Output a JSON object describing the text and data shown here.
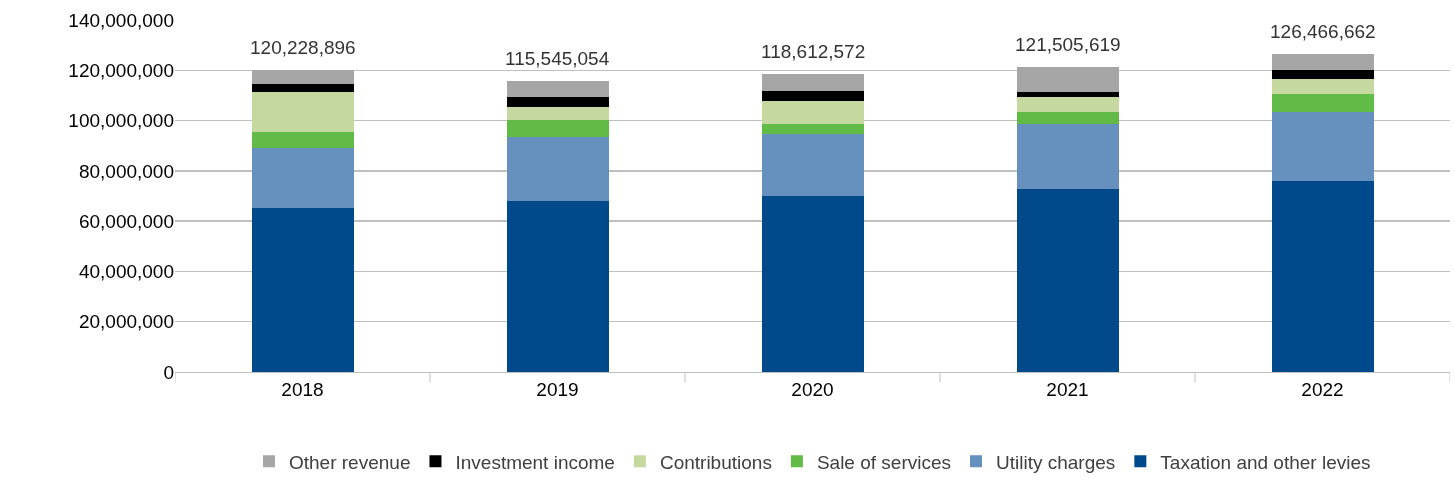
{
  "chart_data": {
    "type": "bar",
    "stacked": true,
    "categories": [
      "2018",
      "2019",
      "2020",
      "2021",
      "2022"
    ],
    "series": [
      {
        "name": "Taxation and other levies",
        "color": "#004a8c",
        "values": [
          65400000,
          68000000,
          70100000,
          72800000,
          75800000
        ]
      },
      {
        "name": "Utility charges",
        "color": "#6690be",
        "values": [
          23500000,
          25300000,
          24600000,
          25800000,
          27800000
        ]
      },
      {
        "name": "Sale of services",
        "color": "#62bb46",
        "values": [
          6700000,
          6900000,
          3900000,
          5000000,
          7000000
        ]
      },
      {
        "name": "Contributions",
        "color": "#c5d89f",
        "values": [
          15600000,
          5300000,
          9300000,
          5800000,
          5900000
        ]
      },
      {
        "name": "Investment income",
        "color": "#000000",
        "values": [
          3500000,
          3900000,
          4000000,
          2000000,
          3700000
        ]
      },
      {
        "name": "Other revenue",
        "color": "#a6a6a6",
        "values": [
          5528896,
          6145054,
          6712572,
          10105619,
          6266662
        ]
      }
    ],
    "totals": [
      "120,228,896",
      "115,545,054",
      "118,612,572",
      "121,505,619",
      "126,466,662"
    ],
    "ylim": [
      0,
      140000000
    ],
    "yticks": [
      {
        "value": 0,
        "label": "0"
      },
      {
        "value": 20000000,
        "label": "20,000,000"
      },
      {
        "value": 40000000,
        "label": "40,000,000"
      },
      {
        "value": 60000000,
        "label": "60,000,000"
      },
      {
        "value": 80000000,
        "label": "80,000,000"
      },
      {
        "value": 100000000,
        "label": "100,000,000"
      },
      {
        "value": 120000000,
        "label": "120,000,000"
      },
      {
        "value": 140000000,
        "label": "140,000,000"
      }
    ],
    "grid": "y",
    "legend": "bottom"
  }
}
